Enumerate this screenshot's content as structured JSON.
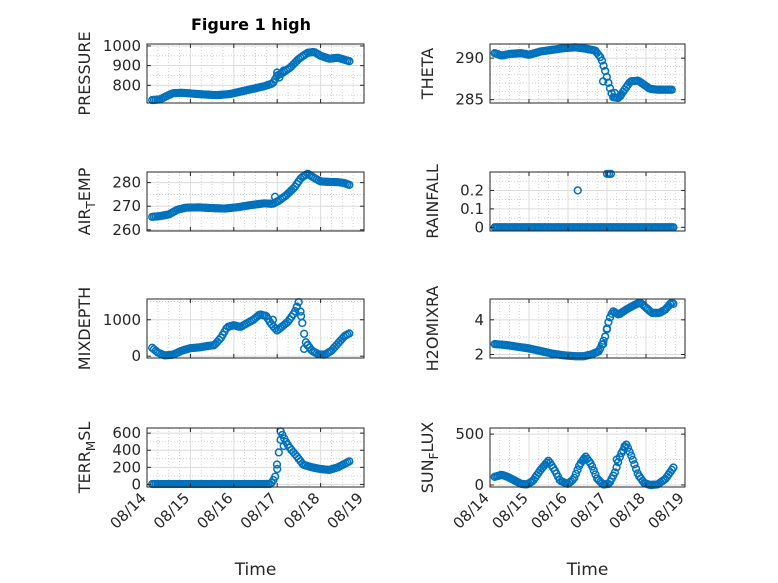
{
  "figure": {
    "title": "Figure 1 high",
    "marker_color": "#0072BD"
  },
  "chart_data": [
    {
      "type": "scatter",
      "id": "pressure",
      "title": "Figure 1 high",
      "ylabel": "PRESSURE",
      "ylabel_sub": "",
      "ylabel_after": "",
      "xlabel": "",
      "ylim": [
        710,
        1010
      ],
      "yticks": [
        800,
        900,
        1000
      ],
      "yminor": [
        750,
        850,
        950
      ],
      "xlim": [
        "08/14",
        "08/19"
      ],
      "xticks": [
        "08/14",
        "08/15",
        "08/16",
        "08/17",
        "08/18",
        "08/19"
      ],
      "show_xticklabels": false,
      "knots": [
        [
          0.12,
          725
        ],
        [
          0.3,
          728
        ],
        [
          0.45,
          745
        ],
        [
          0.6,
          760
        ],
        [
          0.8,
          762
        ],
        [
          1.2,
          755
        ],
        [
          1.6,
          750
        ],
        [
          1.9,
          755
        ],
        [
          2.1,
          765
        ],
        [
          2.3,
          775
        ],
        [
          2.5,
          785
        ],
        [
          2.7,
          795
        ],
        [
          2.9,
          810
        ],
        [
          3.0,
          850
        ],
        [
          3.1,
          860
        ],
        [
          3.3,
          890
        ],
        [
          3.5,
          935
        ],
        [
          3.7,
          965
        ],
        [
          3.85,
          970
        ],
        [
          4.0,
          950
        ],
        [
          4.2,
          935
        ],
        [
          4.4,
          940
        ],
        [
          4.55,
          930
        ],
        [
          4.7,
          920
        ]
      ],
      "outliers": [
        [
          3.0,
          865
        ],
        [
          3.05,
          840
        ],
        [
          3.15,
          875
        ]
      ]
    },
    {
      "type": "scatter",
      "id": "theta",
      "title": "",
      "ylabel": "THETA",
      "ylabel_sub": "",
      "ylabel_after": "",
      "xlabel": "",
      "ylim": [
        284.6,
        291.7
      ],
      "yticks": [
        285,
        290
      ],
      "yminor": [
        286,
        287,
        288,
        289,
        291
      ],
      "xlim": [
        "08/14",
        "08/19"
      ],
      "xticks": [
        "08/14",
        "08/15",
        "08/16",
        "08/17",
        "08/18",
        "08/19"
      ],
      "show_xticklabels": false,
      "knots": [
        [
          0.12,
          290.6
        ],
        [
          0.3,
          290.3
        ],
        [
          0.5,
          290.5
        ],
        [
          0.8,
          290.6
        ],
        [
          1.0,
          290.4
        ],
        [
          1.3,
          290.8
        ],
        [
          1.6,
          291.0
        ],
        [
          1.9,
          291.2
        ],
        [
          2.2,
          291.3
        ],
        [
          2.5,
          291.1
        ],
        [
          2.7,
          290.9
        ],
        [
          2.85,
          290.0
        ],
        [
          2.95,
          288.5
        ],
        [
          3.05,
          286.8
        ],
        [
          3.15,
          285.3
        ],
        [
          3.3,
          285.2
        ],
        [
          3.45,
          286.2
        ],
        [
          3.6,
          287.2
        ],
        [
          3.8,
          287.3
        ],
        [
          3.95,
          286.8
        ],
        [
          4.1,
          286.3
        ],
        [
          4.3,
          286.2
        ],
        [
          4.5,
          286.2
        ],
        [
          4.7,
          286.2
        ]
      ],
      "outliers": [
        [
          3.2,
          285.8
        ],
        [
          3.35,
          285.5
        ],
        [
          2.9,
          287.2
        ]
      ]
    },
    {
      "type": "scatter",
      "id": "air_temp",
      "title": "",
      "ylabel": "AIR",
      "ylabel_sub": "T",
      "ylabel_after": "EMP",
      "xlabel": "",
      "ylim": [
        259.5,
        284.5
      ],
      "yticks": [
        260,
        270,
        280
      ],
      "yminor": [
        265,
        275
      ],
      "xlim": [
        "08/14",
        "08/19"
      ],
      "xticks": [
        "08/14",
        "08/15",
        "08/16",
        "08/17",
        "08/18",
        "08/19"
      ],
      "show_xticklabels": false,
      "knots": [
        [
          0.12,
          265.5
        ],
        [
          0.3,
          265.8
        ],
        [
          0.5,
          266.5
        ],
        [
          0.7,
          268.5
        ],
        [
          0.9,
          269.4
        ],
        [
          1.2,
          269.5
        ],
        [
          1.5,
          269.2
        ],
        [
          1.8,
          269.0
        ],
        [
          2.1,
          269.6
        ],
        [
          2.4,
          270.5
        ],
        [
          2.7,
          271.2
        ],
        [
          2.9,
          271.0
        ],
        [
          3.05,
          272.5
        ],
        [
          3.2,
          274.5
        ],
        [
          3.4,
          278.0
        ],
        [
          3.55,
          282.0
        ],
        [
          3.7,
          283.8
        ],
        [
          3.85,
          282.0
        ],
        [
          4.0,
          280.5
        ],
        [
          4.2,
          280.3
        ],
        [
          4.4,
          280.2
        ],
        [
          4.55,
          279.8
        ],
        [
          4.7,
          278.8
        ]
      ],
      "outliers": [
        [
          2.95,
          274.0
        ],
        [
          3.0,
          272.0
        ]
      ]
    },
    {
      "type": "scatter",
      "id": "rainfall",
      "title": "",
      "ylabel": "RAINFALL",
      "ylabel_sub": "",
      "ylabel_after": "",
      "xlabel": "",
      "ylim": [
        -0.02,
        0.3
      ],
      "yticks": [
        0,
        0.1,
        0.2
      ],
      "yminor": [
        0.05,
        0.15,
        0.25
      ],
      "xlim": [
        "08/14",
        "08/19"
      ],
      "xticks": [
        "08/14",
        "08/15",
        "08/16",
        "08/17",
        "08/18",
        "08/19"
      ],
      "show_xticklabels": false,
      "knots": [
        [
          0.12,
          0
        ],
        [
          4.72,
          0
        ]
      ],
      "outliers": [
        [
          2.25,
          0.2
        ],
        [
          3.0,
          0.29
        ],
        [
          3.05,
          0.29
        ],
        [
          3.1,
          0.29
        ]
      ]
    },
    {
      "type": "scatter",
      "id": "mixdepth",
      "title": "",
      "ylabel": "MIXDEPTH",
      "ylabel_sub": "",
      "ylabel_after": "",
      "xlabel": "",
      "ylim": [
        -50,
        1570
      ],
      "yticks": [
        0,
        1000
      ],
      "yminor": [
        500,
        1500
      ],
      "xlim": [
        "08/14",
        "08/19"
      ],
      "xticks": [
        "08/14",
        "08/15",
        "08/16",
        "08/17",
        "08/18",
        "08/19"
      ],
      "show_xticklabels": false,
      "knots": [
        [
          0.12,
          230
        ],
        [
          0.25,
          100
        ],
        [
          0.4,
          20
        ],
        [
          0.6,
          40
        ],
        [
          0.8,
          150
        ],
        [
          1.0,
          220
        ],
        [
          1.2,
          240
        ],
        [
          1.4,
          280
        ],
        [
          1.55,
          300
        ],
        [
          1.7,
          500
        ],
        [
          1.85,
          800
        ],
        [
          2.0,
          850
        ],
        [
          2.15,
          800
        ],
        [
          2.3,
          900
        ],
        [
          2.45,
          1000
        ],
        [
          2.6,
          1150
        ],
        [
          2.75,
          1100
        ],
        [
          2.85,
          900
        ],
        [
          3.0,
          700
        ],
        [
          3.1,
          800
        ],
        [
          3.25,
          950
        ],
        [
          3.4,
          1200
        ],
        [
          3.5,
          1500
        ],
        [
          3.58,
          900
        ],
        [
          3.65,
          400
        ],
        [
          3.8,
          150
        ],
        [
          3.95,
          50
        ],
        [
          4.1,
          40
        ],
        [
          4.25,
          150
        ],
        [
          4.4,
          350
        ],
        [
          4.55,
          550
        ],
        [
          4.7,
          650
        ]
      ],
      "outliers": [
        [
          3.45,
          1350
        ],
        [
          3.55,
          1100
        ],
        [
          3.62,
          200
        ],
        [
          3.7,
          300
        ],
        [
          2.9,
          1000
        ]
      ]
    },
    {
      "type": "scatter",
      "id": "h2omixra",
      "title": "",
      "ylabel": "H2OMIXRA",
      "ylabel_sub": "",
      "ylabel_after": "",
      "xlabel": "",
      "ylim": [
        1.8,
        5.2
      ],
      "yticks": [
        2,
        4
      ],
      "yminor": [
        3,
        5
      ],
      "xlim": [
        "08/14",
        "08/19"
      ],
      "xticks": [
        "08/14",
        "08/15",
        "08/16",
        "08/17",
        "08/18",
        "08/19"
      ],
      "show_xticklabels": false,
      "knots": [
        [
          0.12,
          2.6
        ],
        [
          0.4,
          2.55
        ],
        [
          0.7,
          2.45
        ],
        [
          1.0,
          2.35
        ],
        [
          1.3,
          2.2
        ],
        [
          1.6,
          2.05
        ],
        [
          1.9,
          1.95
        ],
        [
          2.2,
          1.9
        ],
        [
          2.4,
          1.9
        ],
        [
          2.6,
          2.0
        ],
        [
          2.8,
          2.2
        ],
        [
          2.95,
          3.0
        ],
        [
          3.05,
          4.0
        ],
        [
          3.15,
          4.5
        ],
        [
          3.3,
          4.3
        ],
        [
          3.5,
          4.6
        ],
        [
          3.7,
          4.85
        ],
        [
          3.85,
          5.0
        ],
        [
          4.0,
          4.7
        ],
        [
          4.15,
          4.4
        ],
        [
          4.35,
          4.4
        ],
        [
          4.5,
          4.6
        ],
        [
          4.65,
          5.0
        ],
        [
          4.72,
          4.9
        ]
      ],
      "outliers": [
        [
          3.0,
          3.5
        ],
        [
          2.9,
          2.6
        ]
      ]
    },
    {
      "type": "scatter",
      "id": "terr_msl",
      "title": "",
      "ylabel": "TERR",
      "ylabel_sub": "M",
      "ylabel_after": "SL",
      "xlabel": "Time",
      "ylim": [
        -30,
        660
      ],
      "yticks": [
        0,
        200,
        400,
        600
      ],
      "yminor": [
        100,
        300,
        500
      ],
      "xlim": [
        "08/14",
        "08/19"
      ],
      "xticks": [
        "08/14",
        "08/15",
        "08/16",
        "08/17",
        "08/18",
        "08/19"
      ],
      "show_xticklabels": true,
      "knots": [
        [
          0.12,
          5
        ],
        [
          2.85,
          5
        ],
        [
          2.95,
          80
        ],
        [
          3.0,
          250
        ],
        [
          3.05,
          420
        ],
        [
          3.1,
          600
        ],
        [
          3.2,
          500
        ],
        [
          3.3,
          420
        ],
        [
          3.45,
          330
        ],
        [
          3.6,
          230
        ],
        [
          3.8,
          200
        ],
        [
          4.0,
          180
        ],
        [
          4.2,
          170
        ],
        [
          4.4,
          200
        ],
        [
          4.55,
          240
        ],
        [
          4.7,
          280
        ]
      ],
      "outliers": [
        [
          3.08,
          620
        ],
        [
          3.15,
          450
        ],
        [
          3.0,
          180
        ]
      ]
    },
    {
      "type": "scatter",
      "id": "sun_flux",
      "title": "",
      "ylabel": "SUN",
      "ylabel_sub": "F",
      "ylabel_after": "LUX",
      "xlabel": "Time",
      "ylim": [
        -20,
        560
      ],
      "yticks": [
        0,
        500
      ],
      "yminor": [
        250
      ],
      "xlim": [
        "08/14",
        "08/19"
      ],
      "xticks": [
        "08/14",
        "08/15",
        "08/16",
        "08/17",
        "08/18",
        "08/19"
      ],
      "show_xticklabels": true,
      "knots": [
        [
          0.12,
          80
        ],
        [
          0.3,
          100
        ],
        [
          0.45,
          80
        ],
        [
          0.6,
          50
        ],
        [
          0.8,
          10
        ],
        [
          0.95,
          5
        ],
        [
          1.1,
          40
        ],
        [
          1.3,
          150
        ],
        [
          1.5,
          240
        ],
        [
          1.65,
          150
        ],
        [
          1.8,
          40
        ],
        [
          2.0,
          10
        ],
        [
          2.15,
          60
        ],
        [
          2.3,
          200
        ],
        [
          2.45,
          280
        ],
        [
          2.6,
          200
        ],
        [
          2.75,
          60
        ],
        [
          2.9,
          5
        ],
        [
          3.05,
          10
        ],
        [
          3.2,
          120
        ],
        [
          3.35,
          300
        ],
        [
          3.5,
          400
        ],
        [
          3.65,
          260
        ],
        [
          3.8,
          100
        ],
        [
          3.95,
          20
        ],
        [
          4.1,
          0
        ],
        [
          4.3,
          5
        ],
        [
          4.5,
          60
        ],
        [
          4.72,
          180
        ]
      ],
      "outliers": [
        [
          3.25,
          250
        ],
        [
          3.45,
          380
        ],
        [
          2.4,
          250
        ]
      ]
    }
  ]
}
